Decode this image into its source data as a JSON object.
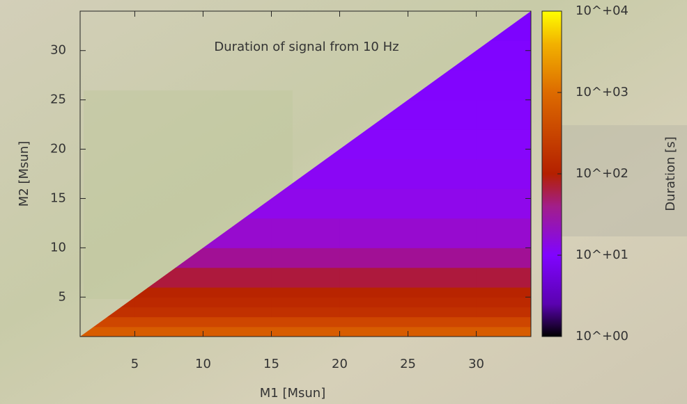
{
  "chart_data": {
    "type": "heatmap",
    "title": "Duration of signal from 10 Hz",
    "xlabel": "M1 [Msun]",
    "ylabel": "M2 [Msun]",
    "xlim": [
      1,
      34
    ],
    "ylim": [
      1,
      34
    ],
    "xticks": [
      5,
      10,
      15,
      20,
      25,
      30
    ],
    "yticks": [
      5,
      10,
      15,
      20,
      25,
      30
    ],
    "x_edges": [
      1,
      5,
      10,
      15,
      20,
      25,
      30,
      34
    ],
    "y_edges": [
      1,
      2,
      3,
      4,
      5,
      6,
      8,
      10,
      13,
      16,
      19,
      22,
      25,
      28,
      31,
      34
    ],
    "z": [
      [
        700,
        700,
        700,
        700,
        700,
        700,
        700
      ],
      [
        400,
        400,
        400,
        400,
        400,
        400,
        400
      ],
      [
        200,
        200,
        200,
        200,
        200,
        200,
        200
      ],
      [
        150,
        150,
        150,
        150,
        150,
        150,
        150
      ],
      [
        null,
        120,
        120,
        120,
        120,
        120,
        120
      ],
      [
        null,
        70,
        70,
        70,
        70,
        70,
        70
      ],
      [
        null,
        40,
        40,
        40,
        40,
        40,
        40
      ],
      [
        null,
        null,
        25,
        25,
        25,
        25,
        25
      ],
      [
        null,
        null,
        18,
        18,
        18,
        18,
        18
      ],
      [
        null,
        null,
        null,
        15,
        15,
        15,
        15
      ],
      [
        null,
        null,
        null,
        13,
        13,
        13,
        13
      ],
      [
        null,
        null,
        null,
        null,
        12,
        12,
        12
      ],
      [
        null,
        null,
        null,
        null,
        null,
        11,
        11
      ],
      [
        null,
        null,
        null,
        null,
        null,
        10,
        10
      ],
      [
        null,
        null,
        null,
        null,
        null,
        null,
        9
      ]
    ],
    "colorbar": {
      "label": "Duration [s]",
      "log": true,
      "lim": [
        1,
        10000
      ],
      "ticks": [
        {
          "value": 1,
          "label": "10^+00"
        },
        {
          "value": 10,
          "label": "10^+01"
        },
        {
          "value": 100,
          "label": "10^+02"
        },
        {
          "value": 1000,
          "label": "10^+03"
        },
        {
          "value": 10000,
          "label": "10^+04"
        }
      ]
    }
  }
}
